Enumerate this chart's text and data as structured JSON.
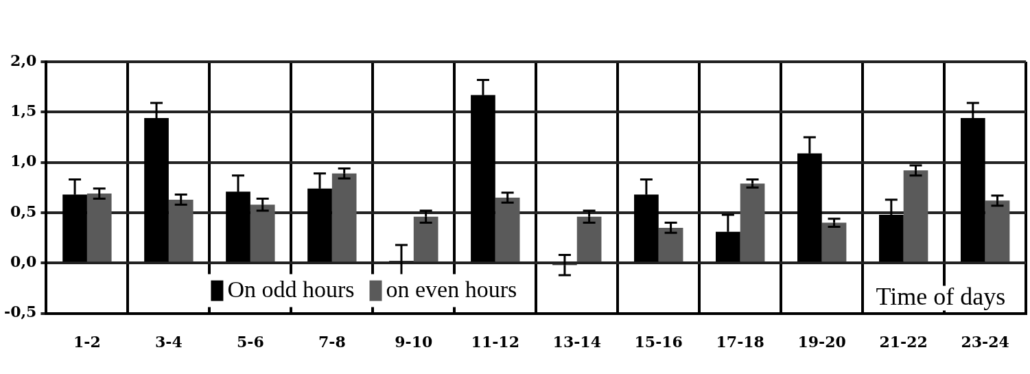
{
  "chart_data": {
    "type": "bar",
    "xlabel": "Time of days",
    "categories": [
      "1-2",
      "3-4",
      "5-6",
      "7-8",
      "9-10",
      "11-12",
      "13-14",
      "15-16",
      "17-18",
      "19-20",
      "21-22",
      "23-24"
    ],
    "series": [
      {
        "name": "On odd hours",
        "color": "#000000",
        "values": [
          0.68,
          1.44,
          0.71,
          0.74,
          0.02,
          1.67,
          -0.02,
          0.68,
          0.31,
          1.09,
          0.48,
          1.44
        ],
        "errors": [
          0.15,
          0.15,
          0.16,
          0.15,
          0.16,
          0.15,
          0.1,
          0.15,
          0.17,
          0.16,
          0.15,
          0.15
        ]
      },
      {
        "name": "on even hours",
        "color": "#5a5a5a",
        "values": [
          0.69,
          0.63,
          0.58,
          0.89,
          0.46,
          0.65,
          0.46,
          0.35,
          0.79,
          0.4,
          0.92,
          0.62
        ],
        "errors": [
          0.05,
          0.05,
          0.06,
          0.05,
          0.06,
          0.05,
          0.06,
          0.05,
          0.04,
          0.04,
          0.05,
          0.05
        ]
      }
    ],
    "ylim": [
      -0.5,
      2.0
    ],
    "yticks": [
      {
        "value": -0.5,
        "label": "-0,5"
      },
      {
        "value": 0,
        "label": "0,0"
      },
      {
        "value": 0.5,
        "label": "0,5"
      },
      {
        "value": 1,
        "label": "1,0"
      },
      {
        "value": 1.5,
        "label": "1,5"
      },
      {
        "value": 2,
        "label": "2,0"
      }
    ],
    "grid": true,
    "legend": "bottom"
  }
}
